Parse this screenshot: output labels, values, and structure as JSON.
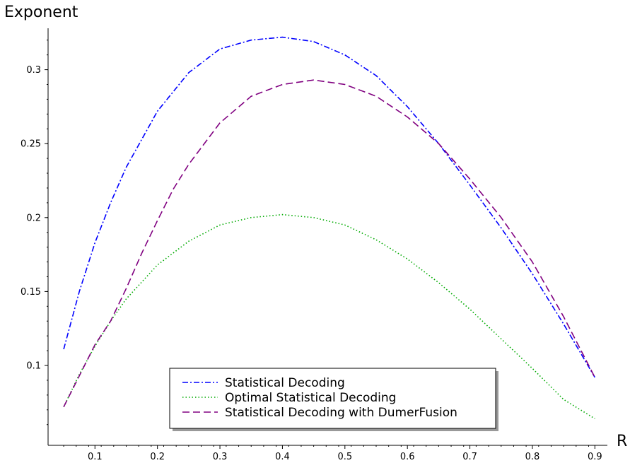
{
  "chart_data": {
    "type": "line",
    "title": "",
    "xlabel": "R",
    "ylabel": "Exponent",
    "xlim": [
      0.025,
      0.92
    ],
    "ylim": [
      0.046,
      0.328
    ],
    "xticks": [
      0.1,
      0.2,
      0.3,
      0.4,
      0.5,
      0.6,
      0.7,
      0.8,
      0.9
    ],
    "xtick_labels": [
      "0.1",
      "0.2",
      "0.3",
      "0.4",
      "0.5",
      "0.6",
      "0.7",
      "0.8",
      "0.9"
    ],
    "yticks": [
      0.1,
      0.15,
      0.2,
      0.25,
      0.3
    ],
    "ytick_labels": [
      "0.1",
      "0.15",
      "0.2",
      "0.25",
      "0.3"
    ],
    "grid": false,
    "legend_position": "bottom-center",
    "series": [
      {
        "name": "Statistical Decoding",
        "color": "#0000ff",
        "dash": "dashdot",
        "x": [
          0.05,
          0.075,
          0.1,
          0.125,
          0.15,
          0.2,
          0.25,
          0.3,
          0.35,
          0.4,
          0.45,
          0.5,
          0.55,
          0.6,
          0.65,
          0.7,
          0.75,
          0.8,
          0.85,
          0.9
        ],
        "y": [
          0.111,
          0.15,
          0.183,
          0.21,
          0.234,
          0.272,
          0.298,
          0.314,
          0.32,
          0.322,
          0.319,
          0.31,
          0.296,
          0.275,
          0.25,
          0.222,
          0.193,
          0.162,
          0.128,
          0.092
        ]
      },
      {
        "name": "Optimal Statistical Decoding",
        "color": "#00aa00",
        "dash": "dotted",
        "x": [
          0.05,
          0.075,
          0.1,
          0.125,
          0.15,
          0.2,
          0.25,
          0.3,
          0.35,
          0.4,
          0.45,
          0.5,
          0.55,
          0.6,
          0.65,
          0.7,
          0.75,
          0.8,
          0.85,
          0.9
        ],
        "y": [
          0.072,
          0.094,
          0.113,
          0.13,
          0.145,
          0.168,
          0.184,
          0.195,
          0.2,
          0.202,
          0.2,
          0.195,
          0.185,
          0.172,
          0.156,
          0.138,
          0.118,
          0.098,
          0.077,
          0.064
        ]
      },
      {
        "name": "Statistical Decoding with DumerFusion",
        "color": "#800080",
        "dash": "dashed",
        "x": [
          0.05,
          0.075,
          0.1,
          0.125,
          0.15,
          0.175,
          0.2,
          0.225,
          0.25,
          0.3,
          0.35,
          0.4,
          0.45,
          0.5,
          0.55,
          0.6,
          0.65,
          0.7,
          0.75,
          0.8,
          0.85,
          0.9
        ],
        "y": [
          0.072,
          0.093,
          0.114,
          0.13,
          0.152,
          0.176,
          0.198,
          0.219,
          0.236,
          0.264,
          0.282,
          0.29,
          0.293,
          0.29,
          0.282,
          0.268,
          0.25,
          0.226,
          0.2,
          0.17,
          0.133,
          0.092
        ]
      }
    ]
  }
}
